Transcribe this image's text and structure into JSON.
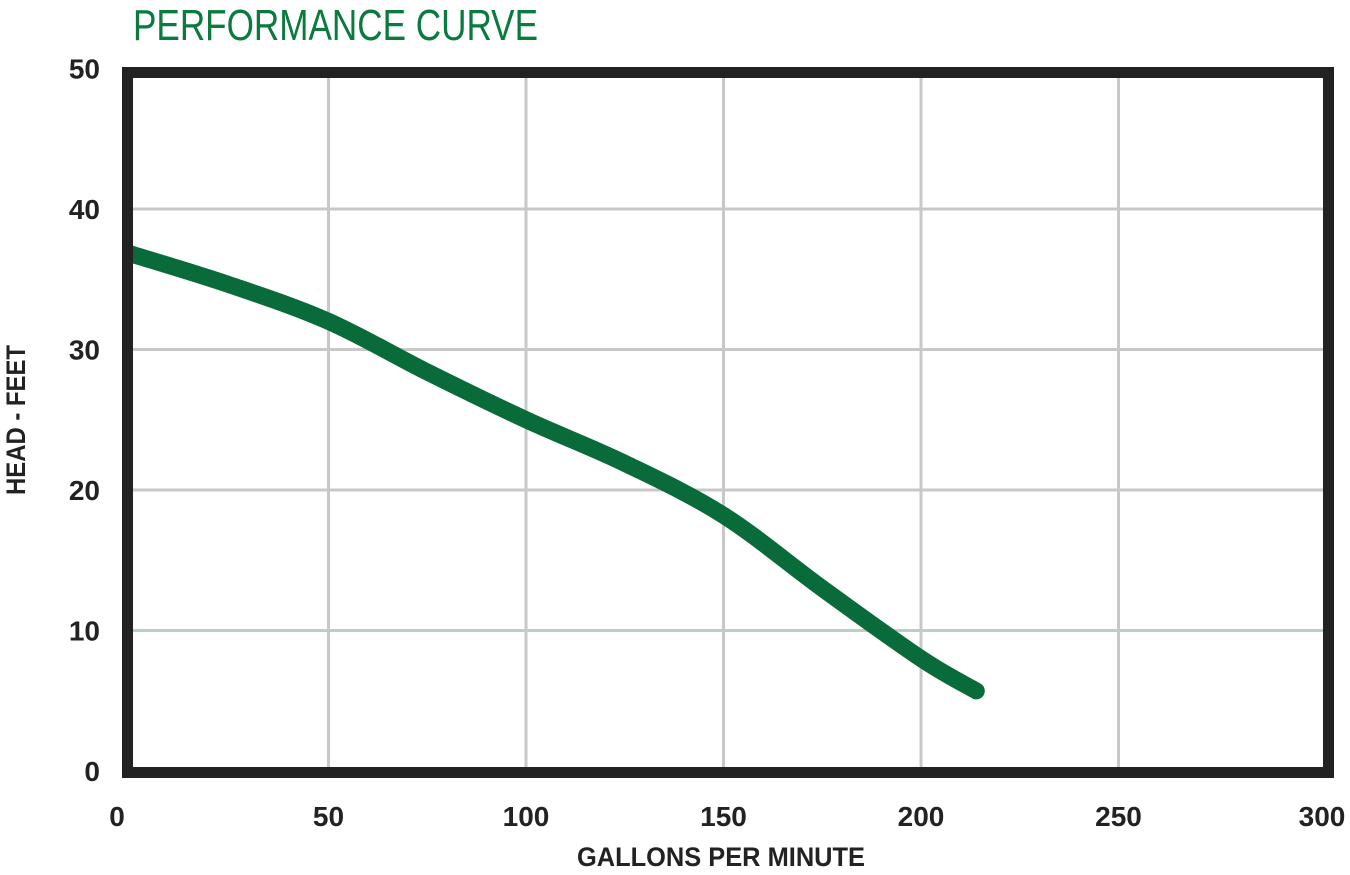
{
  "chart_data": {
    "type": "line",
    "title": "PERFORMANCE CURVE",
    "xlabel": "GALLONS PER MINUTE",
    "ylabel": "HEAD - FEET",
    "xlim": [
      0,
      300
    ],
    "ylim": [
      0,
      50
    ],
    "xticks": [
      0,
      50,
      100,
      150,
      200,
      250,
      300
    ],
    "yticks": [
      0,
      10,
      20,
      30,
      40,
      50
    ],
    "grid": true,
    "colors": {
      "title": "#0b7a3e",
      "curve": "#0a6b3a",
      "frame": "#222222",
      "grid": "#c8c8c8"
    },
    "series": [
      {
        "x": [
          0,
          25,
          50,
          75,
          100,
          125,
          150,
          175,
          200,
          214
        ],
        "y": [
          36.8,
          34.6,
          32.0,
          28.4,
          25.0,
          21.9,
          18.2,
          13.0,
          8.0,
          5.7
        ]
      }
    ]
  }
}
